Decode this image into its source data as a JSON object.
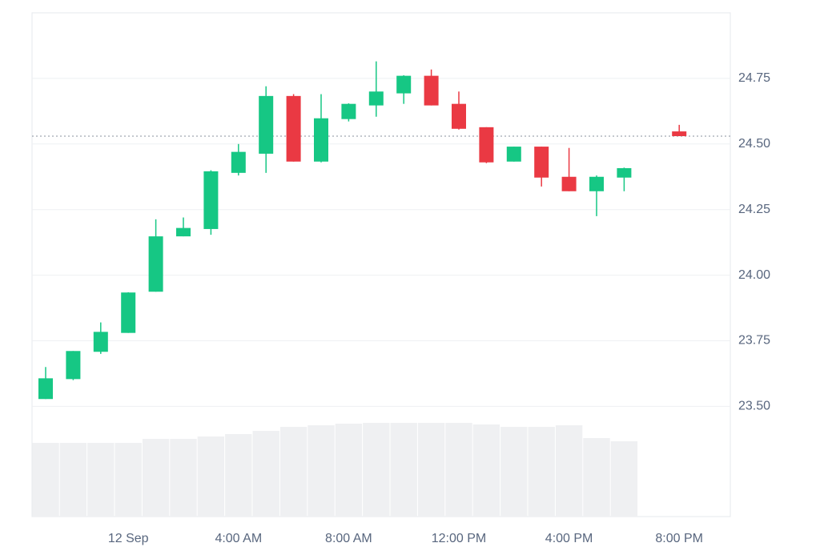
{
  "chart_data": {
    "type": "candlestick",
    "categories": [
      null,
      null,
      null,
      "12 Sep",
      null,
      null,
      null,
      "4:00 AM",
      null,
      null,
      null,
      "8:00 AM",
      null,
      null,
      null,
      "12:00 PM",
      null,
      null,
      null,
      "4:00 PM",
      null,
      null,
      null,
      "8:00 PM"
    ],
    "open": [
      23.528,
      23.604,
      23.708,
      23.78,
      23.937,
      24.148,
      24.176,
      24.39,
      24.463,
      24.683,
      24.433,
      24.595,
      24.647,
      24.693,
      24.76,
      24.653,
      24.564,
      24.433,
      24.49,
      24.375,
      24.32,
      24.372,
      null,
      24.548
    ],
    "high": [
      23.65,
      23.711,
      23.82,
      23.935,
      24.213,
      24.22,
      24.4,
      24.5,
      24.72,
      24.69,
      24.69,
      24.655,
      24.815,
      24.762,
      24.784,
      24.7,
      24.564,
      24.49,
      24.49,
      24.485,
      24.38,
      24.41,
      null,
      24.573
    ],
    "low": [
      23.528,
      23.6,
      23.7,
      23.78,
      23.937,
      24.148,
      24.154,
      24.38,
      24.39,
      24.433,
      24.43,
      24.586,
      24.604,
      24.653,
      24.647,
      24.555,
      24.427,
      24.433,
      24.338,
      24.32,
      24.225,
      24.32,
      null,
      24.53
    ],
    "close": [
      23.607,
      23.711,
      23.784,
      23.934,
      24.148,
      24.18,
      24.396,
      24.47,
      24.683,
      24.433,
      24.598,
      24.653,
      24.7,
      24.76,
      24.647,
      24.558,
      24.43,
      24.49,
      24.372,
      24.32,
      24.375,
      24.408,
      null,
      24.53
    ],
    "volume": [
      92,
      92,
      92,
      92,
      97,
      97,
      100,
      103,
      107,
      112,
      114,
      116,
      117,
      117,
      117,
      117,
      115,
      112,
      112,
      114,
      98,
      94,
      null,
      null
    ],
    "last_price": 24.53,
    "up_color": "#16c784",
    "down_color": "#ea3943",
    "volume_color": "#eff0f2",
    "ylim": [
      23.08,
      25.0
    ],
    "yticks": [
      {
        "value": 23.5,
        "label": "23.50"
      },
      23.75,
      {
        "value": 24.0,
        "label": "24.00"
      },
      24.25,
      {
        "value": 24.5,
        "label": "24.50"
      },
      24.75
    ],
    "grid": true
  }
}
